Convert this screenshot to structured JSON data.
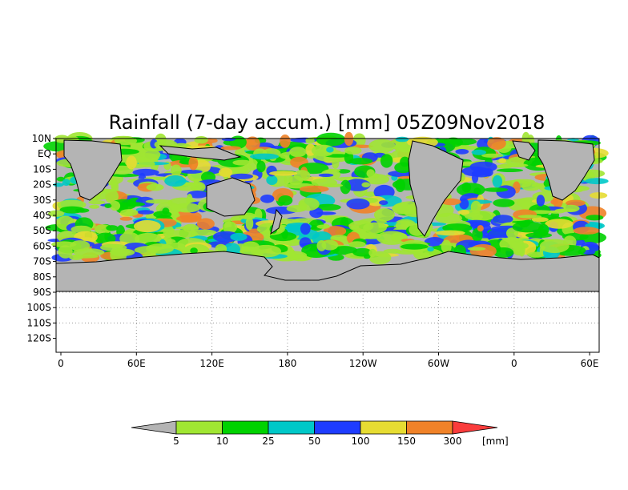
{
  "title": "Rainfall (7-day accum.) [mm] 05Z09Nov2018",
  "map": {
    "lat_labels": [
      "10N",
      "EQ",
      "10S",
      "20S",
      "30S",
      "40S",
      "50S",
      "60S",
      "70S",
      "80S",
      "90S",
      "100S",
      "110S",
      "120S"
    ],
    "lon_labels": [
      "0",
      "60E",
      "120E",
      "180",
      "120W",
      "60W",
      "0",
      "60E"
    ],
    "colors": {
      "no_data": "#b4b4b4",
      "frame": "#000000",
      "grid_dots": "#9a9a9a",
      "coast": "#000000"
    }
  },
  "colorbar": {
    "labels": [
      "5",
      "10",
      "25",
      "50",
      "100",
      "150",
      "300"
    ],
    "unit": "[mm]",
    "bins": [
      {
        "name": "under-5",
        "color": "#b4b4b4"
      },
      {
        "name": "5-10",
        "color": "#a0e632"
      },
      {
        "name": "10-25",
        "color": "#00d200"
      },
      {
        "name": "25-50",
        "color": "#00c8c8"
      },
      {
        "name": "50-100",
        "color": "#1e3cff"
      },
      {
        "name": "100-150",
        "color": "#e6dc32"
      },
      {
        "name": "150-300",
        "color": "#f08228"
      },
      {
        "name": "over-300",
        "color": "#fa3c3c"
      }
    ]
  }
}
